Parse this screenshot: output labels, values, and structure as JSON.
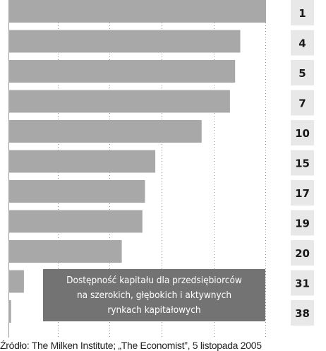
{
  "chart_data": {
    "type": "bar",
    "orientation": "horizontal",
    "categories": [
      "1",
      "4",
      "5",
      "7",
      "10",
      "15",
      "17",
      "19",
      "20",
      "31",
      "38"
    ],
    "values": [
      100,
      90,
      88,
      86,
      75,
      57,
      53,
      52,
      44,
      6,
      1
    ],
    "xlim": [
      0,
      100
    ],
    "grid": true,
    "bar_color": "#a8a8a8",
    "rank_box_color": "#e8e8e8",
    "legend_color": "#737373",
    "legend": {
      "lines": [
        "Dostępność kapitału dla przedsiębiorców",
        "na szerokich, głębokich i aktywnych",
        "rynkach kapitałowych"
      ]
    }
  },
  "source": "Źródło: The Milken Institute; „The Economist”, 5 listopada 2005"
}
